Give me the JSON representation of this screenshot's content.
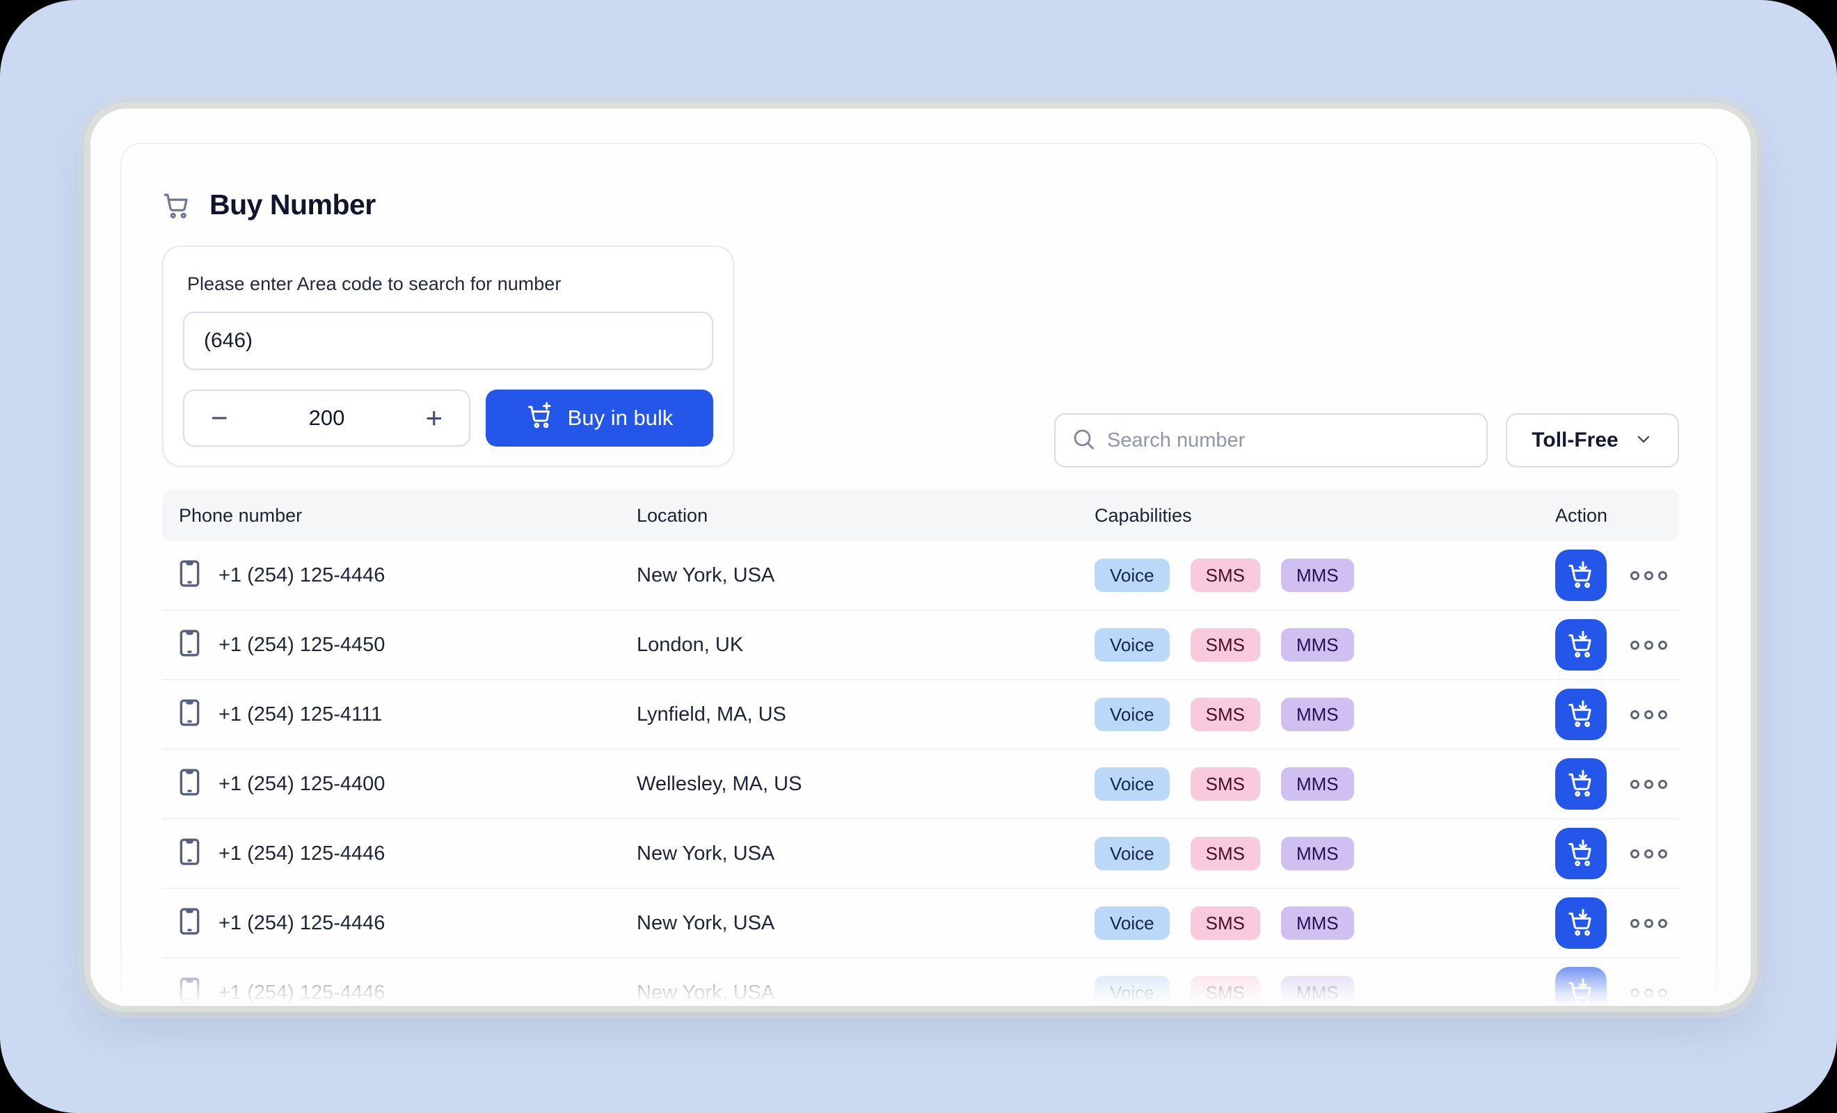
{
  "page": {
    "title": "Buy Number",
    "title_icon": "shopping-cart-icon"
  },
  "area_form": {
    "label": "Please enter Area code to search for number",
    "area_code_value": "(646)",
    "quantity": "200",
    "minus_label": "−",
    "plus_label": "+",
    "buy_bulk_label": "Buy in bulk",
    "buy_bulk_icon": "cart-plus-icon"
  },
  "search": {
    "placeholder": "Search number",
    "icon": "search-icon"
  },
  "filter": {
    "selected": "Toll-Free",
    "icon": "chevron-down-icon"
  },
  "table": {
    "headers": [
      "Phone number",
      "Location",
      "Capabilities",
      "Action"
    ],
    "row_icon": "smartphone-icon",
    "action_icon": "cart-download-icon",
    "more_icon": "ellipsis-icon",
    "rows": [
      {
        "number": "+1 (254) 125-4446",
        "location": "New York, USA",
        "capabilities": [
          "Voice",
          "SMS",
          "MMS"
        ]
      },
      {
        "number": "+1 (254) 125-4450",
        "location": "London, UK",
        "capabilities": [
          "Voice",
          "SMS",
          "MMS"
        ]
      },
      {
        "number": "+1 (254) 125-4111",
        "location": "Lynfield, MA, US",
        "capabilities": [
          "Voice",
          "SMS",
          "MMS"
        ]
      },
      {
        "number": "+1 (254) 125-4400",
        "location": "Wellesley, MA, US",
        "capabilities": [
          "Voice",
          "SMS",
          "MMS"
        ]
      },
      {
        "number": "+1 (254) 125-4446",
        "location": "New York, USA",
        "capabilities": [
          "Voice",
          "SMS",
          "MMS"
        ]
      },
      {
        "number": "+1 (254) 125-4446",
        "location": "New York, USA",
        "capabilities": [
          "Voice",
          "SMS",
          "MMS"
        ]
      },
      {
        "number": "+1 (254) 125-4446",
        "location": "New York, USA",
        "capabilities": [
          "Voice",
          "SMS",
          "MMS"
        ]
      }
    ]
  },
  "colors": {
    "accent": "#2457e9",
    "background": "#ccd9f2",
    "badge_voice_bg": "#bcd8f8",
    "badge_voice_text": "#14254d",
    "badge_sms_bg": "#f9c9de",
    "badge_sms_text": "#470c2a",
    "badge_mms_bg": "#cfc0f1",
    "badge_mms_text": "#261150"
  }
}
